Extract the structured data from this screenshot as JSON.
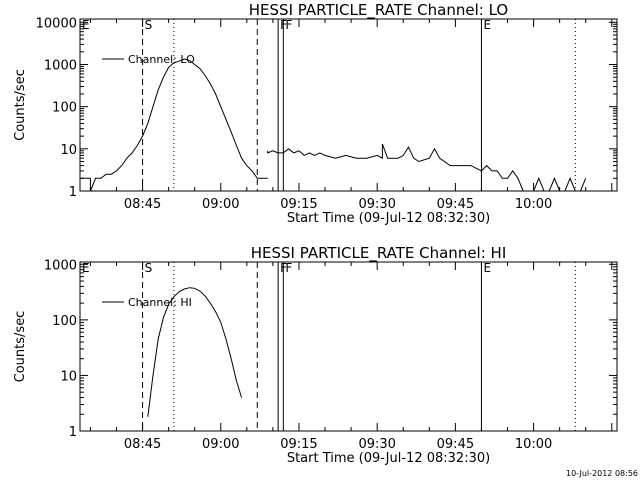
{
  "footer": {
    "timestamp": "10-Jul-2012 08:56"
  },
  "chart_data": [
    {
      "type": "line",
      "title": "HESSI PARTICLE_RATE Channel: LO",
      "xlabel": "Start Time (09-Jul-12 08:32:30)",
      "ylabel": "Counts/sec",
      "yscale": "log",
      "ylim": [
        1,
        12000
      ],
      "xlim": [
        "08:33",
        "10:16"
      ],
      "x_ticks": [
        "08:45",
        "09:00",
        "09:15",
        "09:30",
        "09:45",
        "10:00"
      ],
      "y_ticks": [
        "1",
        "10",
        "100",
        "1000",
        "10000"
      ],
      "legend": {
        "placement": "top-left",
        "entries": [
          "Channel: LO"
        ]
      },
      "markers": [
        {
          "label": "E",
          "time": "08:33",
          "style": "solid"
        },
        {
          "label": "S",
          "time": "08:45",
          "style": "dashed"
        },
        {
          "label": "",
          "time": "08:51",
          "style": "dotted"
        },
        {
          "label": "",
          "time": "09:07",
          "style": "dashed"
        },
        {
          "label": "F",
          "time": "09:11",
          "style": "solid"
        },
        {
          "label": "F",
          "time": "09:12",
          "style": "solid"
        },
        {
          "label": "E",
          "time": "09:50",
          "style": "solid"
        },
        {
          "label": "",
          "time": "10:08",
          "style": "dotted"
        }
      ],
      "series": [
        {
          "name": "Channel: LO",
          "segments": [
            {
              "x": [
                "08:33",
                "08:35",
                "08:35",
                "08:36",
                "08:37",
                "08:38",
                "08:39",
                "08:40",
                "08:41",
                "08:42",
                "08:43",
                "08:44",
                "08:45",
                "08:46",
                "08:47",
                "08:48",
                "08:49",
                "08:50",
                "08:51",
                "08:52",
                "08:53",
                "08:54",
                "08:55",
                "08:56",
                "08:57",
                "08:58",
                "08:59",
                "09:00",
                "09:01",
                "09:02",
                "09:03",
                "09:04",
                "09:05",
                "09:06",
                "09:07",
                "09:08",
                "09:09"
              ],
              "y": [
                2,
                2,
                1,
                2,
                2,
                2.5,
                2.5,
                3,
                4,
                6,
                8,
                12,
                20,
                40,
                100,
                250,
                500,
                850,
                1100,
                1200,
                1350,
                1250,
                1000,
                800,
                550,
                350,
                200,
                100,
                50,
                25,
                12,
                6,
                4,
                3,
                2,
                2,
                2
              ]
            },
            {
              "x": [
                "09:09",
                "09:09",
                "09:10",
                "09:11",
                "09:12",
                "09:13",
                "09:14",
                "09:15",
                "09:16",
                "09:17",
                "09:18",
                "09:19",
                "09:20",
                "09:22",
                "09:24",
                "09:26",
                "09:28",
                "09:30",
                "09:31",
                "09:31",
                "09:32",
                "09:34",
                "09:35",
                "09:36",
                "09:37",
                "09:38",
                "09:40",
                "09:41",
                "09:42",
                "09:44",
                "09:46",
                "09:48",
                "09:50",
                "09:51",
                "09:52",
                "09:53",
                "09:54",
                "09:55",
                "09:56",
                "09:57",
                "09:58",
                "10:00",
                "10:01",
                "10:02",
                "10:03",
                "10:04",
                "10:05",
                "10:06",
                "10:07",
                "10:08",
                "10:09",
                "10:10"
              ],
              "y": [
                9,
                8,
                9,
                8,
                8,
                10,
                8,
                9,
                7,
                8,
                7,
                8,
                7,
                6,
                7,
                6,
                6,
                7,
                6,
                13,
                6,
                6,
                7,
                11,
                6,
                5,
                6,
                10,
                6,
                4,
                4,
                4,
                3,
                4,
                3,
                3,
                2,
                2,
                3,
                2,
                1,
                1,
                2,
                1,
                1,
                2,
                1,
                1,
                2,
                1,
                1,
                2
              ]
            }
          ]
        }
      ]
    },
    {
      "type": "line",
      "title": "HESSI PARTICLE_RATE Channel: HI",
      "xlabel": "Start Time (09-Jul-12 08:32:30)",
      "ylabel": "Counts/sec",
      "yscale": "log",
      "ylim": [
        1,
        1100
      ],
      "xlim": [
        "08:33",
        "10:16"
      ],
      "x_ticks": [
        "08:45",
        "09:00",
        "09:15",
        "09:30",
        "09:45",
        "10:00"
      ],
      "y_ticks": [
        "1",
        "10",
        "100",
        "1000"
      ],
      "legend": {
        "placement": "top-left",
        "entries": [
          "Channel: HI"
        ]
      },
      "markers": [
        {
          "label": "E",
          "time": "08:33",
          "style": "solid"
        },
        {
          "label": "S",
          "time": "08:45",
          "style": "dashed"
        },
        {
          "label": "",
          "time": "08:51",
          "style": "dotted"
        },
        {
          "label": "",
          "time": "09:07",
          "style": "dashed"
        },
        {
          "label": "F",
          "time": "09:11",
          "style": "solid"
        },
        {
          "label": "F",
          "time": "09:12",
          "style": "solid"
        },
        {
          "label": "E",
          "time": "09:50",
          "style": "solid"
        },
        {
          "label": "",
          "time": "10:08",
          "style": "dotted"
        }
      ],
      "series": [
        {
          "name": "Channel: HI",
          "segments": [
            {
              "x": [
                "08:46",
                "08:47",
                "08:48",
                "08:49",
                "08:50",
                "08:51",
                "08:52",
                "08:53",
                "08:54",
                "08:55",
                "08:56",
                "08:57",
                "08:58",
                "08:59",
                "09:00",
                "09:01",
                "09:02",
                "09:03",
                "09:04"
              ],
              "y": [
                1.8,
                10,
                45,
                110,
                190,
                260,
                320,
                360,
                380,
                370,
                330,
                270,
                200,
                140,
                90,
                45,
                20,
                8,
                4
              ]
            }
          ]
        }
      ]
    }
  ]
}
